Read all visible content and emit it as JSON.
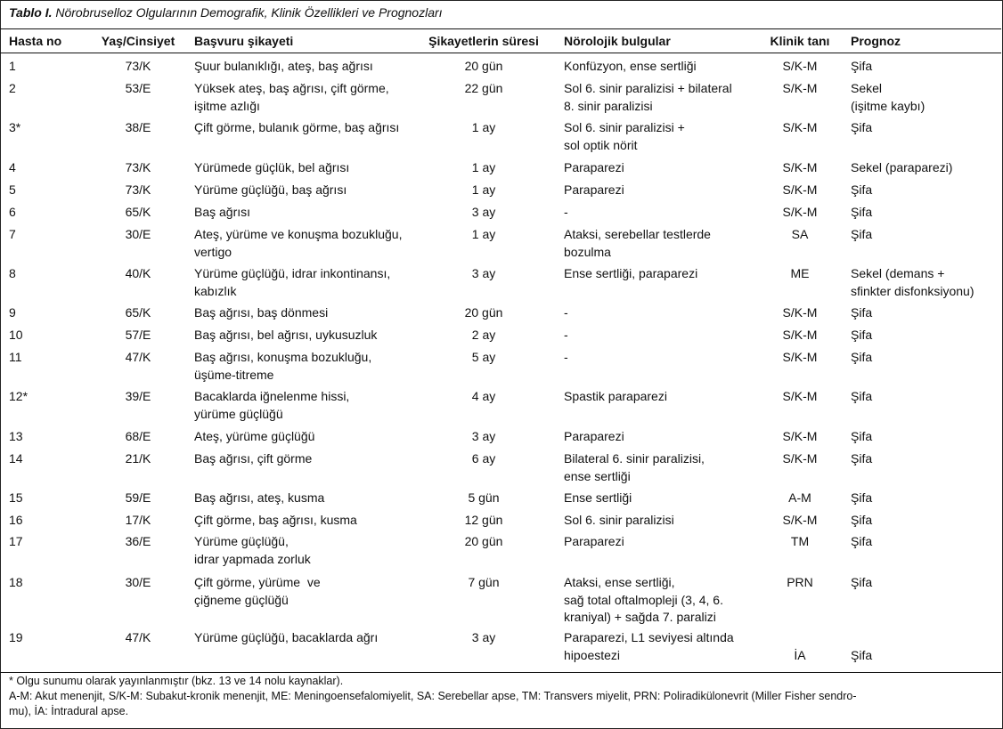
{
  "table": {
    "caption_label": "Tablo I.",
    "caption_text": "Nörobruselloz Olgularının Demografik, Klinik Özellikleri ve Prognozları",
    "headers": [
      "Hasta no",
      "Yaş/Cinsiyet",
      "Başvuru şikayeti",
      "Şikayetlerin süresi",
      "Nörolojik bulgular",
      "Klinik tanı",
      "Prognoz"
    ],
    "rows": [
      [
        "1",
        "73/K",
        "Şuur bulanıklığı, ateş, baş ağrısı",
        "20 gün",
        "Konfüzyon, ense sertliği",
        "S/K-M",
        "Şifa"
      ],
      [
        "2",
        "53/E",
        "Yüksek ateş, baş ağrısı, çift görme,\nişitme azlığı",
        "22 gün",
        "Sol 6. sinir paralizisi + bilateral\n8. sinir paralizisi",
        "S/K-M",
        "Sekel\n(işitme kaybı)"
      ],
      [
        "3*",
        "38/E",
        "Çift görme, bulanık görme, baş ağrısı",
        "1 ay",
        "Sol 6. sinir paralizisi +\nsol optik nörit",
        "S/K-M",
        "Şifa"
      ],
      [
        "4",
        "73/K",
        "Yürümede güçlük, bel ağrısı",
        "1 ay",
        "Paraparezi",
        "S/K-M",
        "Sekel (paraparezi)"
      ],
      [
        "5",
        "73/K",
        "Yürüme güçlüğü, baş ağrısı",
        "1 ay",
        "Paraparezi",
        "S/K-M",
        "Şifa"
      ],
      [
        "6",
        "65/K",
        "Baş ağrısı",
        "3 ay",
        "-",
        "S/K-M",
        "Şifa"
      ],
      [
        "7",
        "30/E",
        "Ateş, yürüme ve konuşma bozukluğu,\nvertigo",
        "1 ay",
        "Ataksi, serebellar testlerde\nbozulma",
        "SA",
        "Şifa"
      ],
      [
        "8",
        "40/K",
        "Yürüme güçlüğü, idrar inkontinansı,\nkabızlık",
        "3 ay",
        "Ense sertliği, paraparezi",
        "ME",
        "Sekel (demans +\nsfinkter disfonksiyonu)"
      ],
      [
        "9",
        "65/K",
        "Baş ağrısı, baş dönmesi",
        "20 gün",
        "-",
        "S/K-M",
        "Şifa"
      ],
      [
        "10",
        "57/E",
        "Baş ağrısı, bel ağrısı, uykusuzluk",
        "2 ay",
        "-",
        "S/K-M",
        "Şifa"
      ],
      [
        "11",
        "47/K",
        "Baş ağrısı, konuşma bozukluğu,\nüşüme-titreme",
        "5 ay",
        "-",
        "S/K-M",
        "Şifa"
      ],
      [
        "12*",
        "39/E",
        "Bacaklarda iğnelenme hissi,\nyürüme güçlüğü",
        "4 ay",
        "Spastik paraparezi",
        "S/K-M",
        "Şifa"
      ],
      [
        "13",
        "68/E",
        "Ateş, yürüme güçlüğü",
        "3 ay",
        "Paraparezi",
        "S/K-M",
        "Şifa"
      ],
      [
        "14",
        "21/K",
        "Baş ağrısı, çift görme",
        "6 ay",
        "Bilateral 6. sinir paralizisi,\nense sertliği",
        "S/K-M",
        "Şifa"
      ],
      [
        "15",
        "59/E",
        "Baş ağrısı, ateş, kusma",
        "5 gün",
        "Ense sertliği",
        "A-M",
        "Şifa"
      ],
      [
        "16",
        "17/K",
        "Çift görme, baş ağrısı, kusma",
        "12 gün",
        "Sol 6. sinir paralizisi",
        "S/K-M",
        "Şifa"
      ],
      [
        "17",
        "36/E",
        "Yürüme güçlüğü,\nidrar yapmada zorluk",
        "20 gün",
        "Paraparezi",
        "TM",
        "Şifa"
      ],
      [
        "18",
        "30/E",
        "Çift görme, yürüme  ve\nçiğneme güçlüğü",
        "7 gün",
        "Ataksi, ense sertliği,\nsağ total oftalmopleji (3, 4, 6.\nkraniyal) + sağda 7. paralizi",
        "PRN",
        "Şifa"
      ],
      [
        "19",
        "47/K",
        "Yürüme güçlüğü, bacaklarda ağrı",
        "3 ay",
        "Paraparezi, L1 seviyesi altında\nhipoestezi",
        "\nİA",
        "\nŞifa"
      ]
    ],
    "footnotes": [
      "* Olgu sunumu olarak yayınlanmıştır (bkz. 13 ve 14 nolu kaynaklar).",
      "A-M: Akut menenjit, S/K-M: Subakut-kronik menenjit, ME: Meningoensefalomiyelit, SA: Serebellar apse, TM: Transvers miyelit, PRN: Poliradikülonevrit (Miller Fisher sendro-\nmu), İA: İntradural apse."
    ]
  }
}
